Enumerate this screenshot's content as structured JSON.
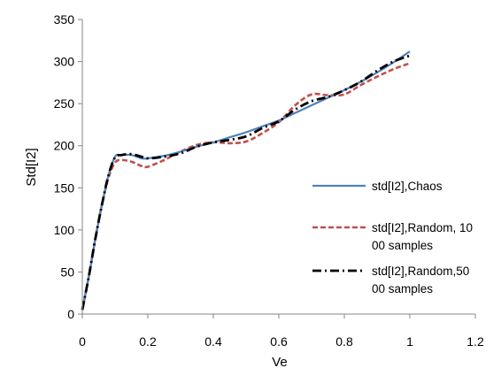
{
  "chart_data": {
    "type": "line",
    "title": "",
    "xlabel": "Ve",
    "ylabel": "Std[I2]",
    "xlim": [
      0,
      1.2
    ],
    "ylim": [
      0,
      350
    ],
    "xticks": [
      "0",
      "0.2",
      "0.4",
      "0.6",
      "0.8",
      "1",
      "1.2"
    ],
    "xtick_values": [
      0,
      0.2,
      0.4,
      0.6,
      0.8,
      1.0,
      1.2
    ],
    "yticks": [
      "0",
      "50",
      "100",
      "150",
      "200",
      "250",
      "300",
      "350"
    ],
    "ytick_values": [
      0,
      50,
      100,
      150,
      200,
      250,
      300,
      350
    ],
    "grid": false,
    "legend_position": "right",
    "series": [
      {
        "name": "std[I2],Chaos",
        "legend_lines": [
          "std[I2],Chaos"
        ],
        "color": "#4F81BD",
        "style": "solid",
        "x": [
          0,
          0.02,
          0.04,
          0.06,
          0.08,
          0.1,
          0.12,
          0.15,
          0.18,
          0.2,
          0.25,
          0.3,
          0.35,
          0.4,
          0.45,
          0.5,
          0.55,
          0.6,
          0.65,
          0.7,
          0.75,
          0.8,
          0.85,
          0.9,
          0.95,
          1.0
        ],
        "y": [
          5,
          45,
          90,
          130,
          165,
          187,
          189,
          189,
          185,
          185,
          188,
          193,
          199,
          204,
          210,
          216,
          223,
          230,
          239,
          248,
          257,
          266,
          276,
          287,
          299,
          312
        ]
      },
      {
        "name": "std[I2],Random, 1000 samples",
        "legend_lines": [
          "std[I2],Random, 10",
          "00 samples"
        ],
        "color": "#C0504D",
        "style": "dashed",
        "x": [
          0,
          0.02,
          0.04,
          0.06,
          0.08,
          0.1,
          0.12,
          0.15,
          0.18,
          0.2,
          0.25,
          0.3,
          0.35,
          0.4,
          0.45,
          0.5,
          0.55,
          0.6,
          0.65,
          0.7,
          0.75,
          0.8,
          0.85,
          0.9,
          0.95,
          1.0
        ],
        "y": [
          5,
          45,
          90,
          130,
          162,
          180,
          183,
          181,
          176,
          175,
          183,
          193,
          201,
          204,
          203,
          205,
          215,
          228,
          248,
          261,
          260,
          261,
          272,
          282,
          291,
          298
        ]
      },
      {
        "name": "std[I2],Random,5000 samples",
        "legend_lines": [
          "std[I2],Random,50",
          "00 samples"
        ],
        "color": "#000000",
        "style": "dashdot",
        "x": [
          0,
          0.02,
          0.04,
          0.06,
          0.08,
          0.1,
          0.12,
          0.15,
          0.18,
          0.2,
          0.25,
          0.3,
          0.35,
          0.4,
          0.45,
          0.5,
          0.55,
          0.6,
          0.65,
          0.7,
          0.75,
          0.8,
          0.85,
          0.9,
          0.95,
          1.0
        ],
        "y": [
          5,
          45,
          90,
          130,
          165,
          186,
          189,
          190,
          187,
          185,
          187,
          191,
          199,
          204,
          207,
          211,
          221,
          229,
          243,
          253,
          258,
          266,
          276,
          289,
          300,
          307
        ]
      }
    ]
  }
}
